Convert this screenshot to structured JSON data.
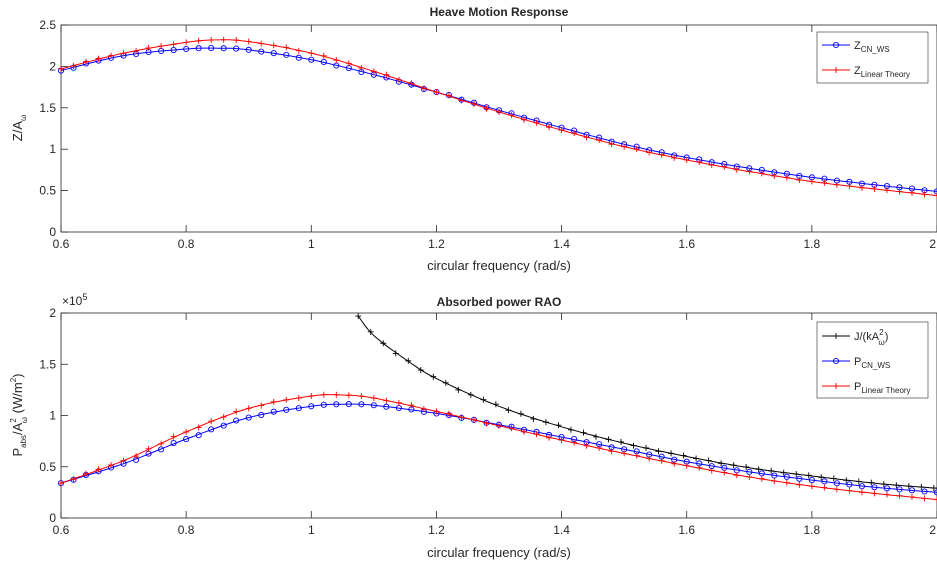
{
  "chart_data": [
    {
      "type": "line",
      "title": "Heave Motion Response",
      "xlabel": "circular frequency (rad/s)",
      "ylabel": {
        "base": "Z/A",
        "sub": "ω"
      },
      "xlim": [
        0.6,
        2.0
      ],
      "ylim": [
        0,
        2.5
      ],
      "xticks": [
        "0.6",
        "0.8",
        "1",
        "1.2",
        "1.4",
        "1.6",
        "1.8",
        "2"
      ],
      "yticks": [
        "0",
        "0.5",
        "1",
        "1.5",
        "2",
        "2.5"
      ],
      "grid": false,
      "legend_position": "top-right",
      "series": [
        {
          "name": {
            "base": "Z",
            "sub": "CN_WS"
          },
          "color": "#0000ff",
          "marker": "circle",
          "x": [
            0.6,
            0.7,
            0.8,
            0.85,
            0.9,
            1.0,
            1.1,
            1.2,
            1.3,
            1.4,
            1.5,
            1.6,
            1.7,
            1.8,
            1.9,
            2.0
          ],
          "y": [
            1.95,
            2.13,
            2.21,
            2.22,
            2.2,
            2.08,
            1.9,
            1.69,
            1.47,
            1.26,
            1.06,
            0.9,
            0.77,
            0.66,
            0.57,
            0.49
          ]
        },
        {
          "name": {
            "base": "Z",
            "sub": "Linear Theory"
          },
          "color": "#ff0000",
          "marker": "plus",
          "x": [
            0.6,
            0.7,
            0.8,
            0.85,
            0.9,
            1.0,
            1.1,
            1.2,
            1.3,
            1.4,
            1.5,
            1.6,
            1.7,
            1.8,
            1.9,
            2.0
          ],
          "y": [
            1.97,
            2.16,
            2.29,
            2.32,
            2.3,
            2.16,
            1.94,
            1.69,
            1.45,
            1.23,
            1.03,
            0.87,
            0.73,
            0.61,
            0.52,
            0.44
          ]
        }
      ]
    },
    {
      "type": "line",
      "title": "Absorbed power RAO",
      "xlabel": "circular frequency (rad/s)",
      "ylabel": {
        "base": "P",
        "sub1": "abs",
        "mid": "/A",
        "sup": "2",
        "sub2": "ω",
        "unit": " (W/m",
        "unit_sup": "2",
        "unit_end": ")"
      },
      "multiplier": {
        "base": "×10",
        "exp": "5"
      },
      "xlim": [
        0.6,
        2.0
      ],
      "ylim": [
        0,
        200000
      ],
      "xticks": [
        "0.6",
        "0.8",
        "1",
        "1.2",
        "1.4",
        "1.6",
        "1.8",
        "2"
      ],
      "yticks": [
        "0",
        "0.5",
        "1",
        "1.5",
        "2"
      ],
      "grid": false,
      "legend_position": "top-right",
      "series": [
        {
          "name": {
            "base": "J/(kA",
            "sup": "2",
            "sub": "ω",
            "end": ")"
          },
          "color": "#000000",
          "marker": "plus",
          "x": [
            1.075,
            1.1,
            1.15,
            1.2,
            1.3,
            1.4,
            1.5,
            1.6,
            1.7,
            1.8,
            1.9,
            2.0
          ],
          "y": [
            197000,
            178000,
            155000,
            136000,
            109000,
            89000,
            73000,
            60000,
            49000,
            41000,
            34000,
            29000
          ]
        },
        {
          "name": {
            "base": "P",
            "sub": "CN_WS"
          },
          "color": "#0000ff",
          "marker": "circle",
          "x": [
            0.6,
            0.7,
            0.8,
            0.9,
            1.0,
            1.05,
            1.1,
            1.2,
            1.3,
            1.4,
            1.5,
            1.6,
            1.7,
            1.8,
            1.9,
            2.0
          ],
          "y": [
            34000,
            53000,
            77000,
            98000,
            109000,
            111000,
            110000,
            102000,
            91000,
            79000,
            67000,
            55000,
            45000,
            37000,
            30000,
            25000
          ]
        },
        {
          "name": {
            "base": "P",
            "sub": "Linear Theory"
          },
          "color": "#ff0000",
          "marker": "plus",
          "x": [
            0.6,
            0.7,
            0.8,
            0.9,
            1.0,
            1.05,
            1.1,
            1.2,
            1.3,
            1.4,
            1.5,
            1.6,
            1.7,
            1.8,
            1.9,
            2.0
          ],
          "y": [
            34000,
            56000,
            84000,
            107000,
            119000,
            120000,
            117000,
            104000,
            90000,
            76000,
            63000,
            51000,
            40000,
            31000,
            24000,
            18000
          ]
        }
      ]
    }
  ]
}
